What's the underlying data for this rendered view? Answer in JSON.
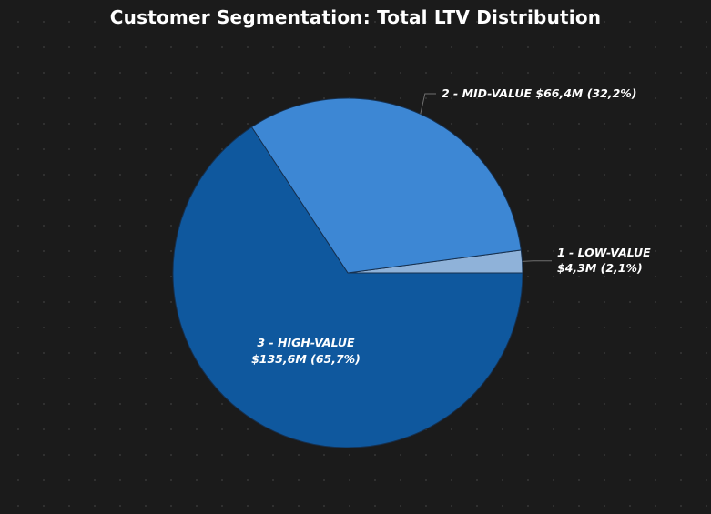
{
  "chart_data": {
    "type": "pie",
    "title": "Customer Segmentation: Total LTV Distribution",
    "slices": [
      {
        "name": "1 - LOW-VALUE",
        "value": 4.3,
        "value_label": "$4,3M",
        "percent": 2.1,
        "percent_label": "(2,1%)",
        "color": "#8fb2d9"
      },
      {
        "name": "2 - MID-VALUE",
        "value": 66.4,
        "value_label": "$66,4M",
        "percent": 32.2,
        "percent_label": "(32,2%)",
        "color": "#3d87d4"
      },
      {
        "name": "3 - HIGH-VALUE",
        "value": 135.6,
        "value_label": "$135,6M",
        "percent": 65.7,
        "percent_label": "(65,7%)",
        "color": "#0f589e"
      }
    ],
    "start_angle_deg": 0,
    "direction": "counterclockwise",
    "edge_color": "#16304f",
    "background": "#1b1b1b",
    "text_color": "#ffffff"
  }
}
